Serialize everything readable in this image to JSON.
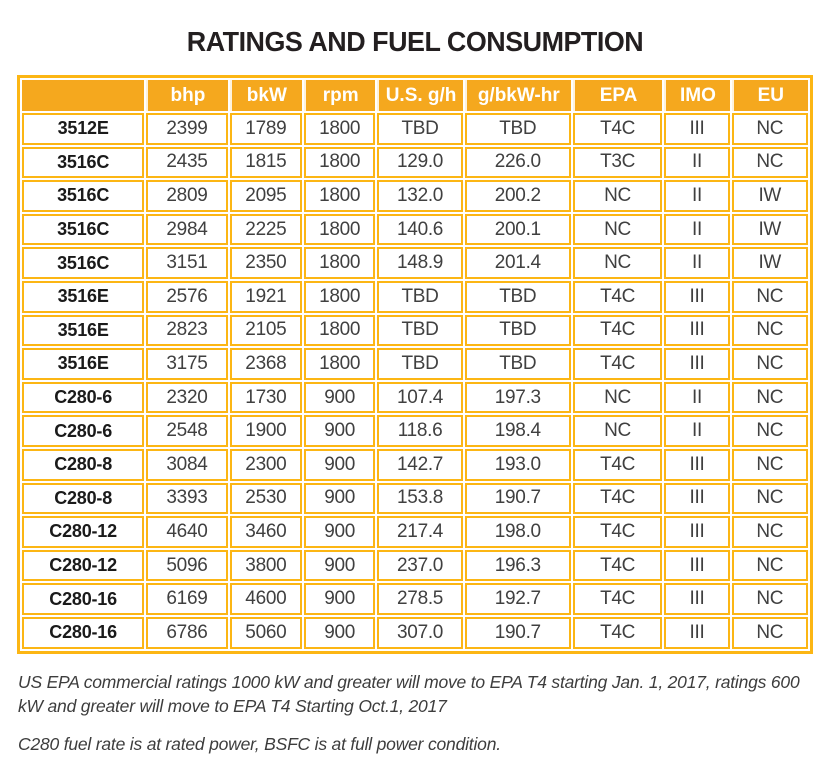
{
  "title": "RATINGS AND FUEL CONSUMPTION",
  "colors": {
    "header_bg": "#F5A81E",
    "header_text": "#FFFFFF",
    "grid": "#FCB614",
    "body_text": "#404040",
    "model_text": "#1A1A1A",
    "title_color": "#231F20",
    "footnote_color": "#3D3D3D"
  },
  "table": {
    "columns": [
      "",
      "bhp",
      "bkW",
      "rpm",
      "U.S. g/h",
      "g/bkW-hr",
      "EPA",
      "IMO",
      "EU"
    ],
    "rows": [
      [
        "3512E",
        "2399",
        "1789",
        "1800",
        "TBD",
        "TBD",
        "T4C",
        "III",
        "NC"
      ],
      [
        "3516C",
        "2435",
        "1815",
        "1800",
        "129.0",
        "226.0",
        "T3C",
        "II",
        "NC"
      ],
      [
        "3516C",
        "2809",
        "2095",
        "1800",
        "132.0",
        "200.2",
        "NC",
        "II",
        "IW"
      ],
      [
        "3516C",
        "2984",
        "2225",
        "1800",
        "140.6",
        "200.1",
        "NC",
        "II",
        "IW"
      ],
      [
        "3516C",
        "3151",
        "2350",
        "1800",
        "148.9",
        "201.4",
        "NC",
        "II",
        "IW"
      ],
      [
        "3516E",
        "2576",
        "1921",
        "1800",
        "TBD",
        "TBD",
        "T4C",
        "III",
        "NC"
      ],
      [
        "3516E",
        "2823",
        "2105",
        "1800",
        "TBD",
        "TBD",
        "T4C",
        "III",
        "NC"
      ],
      [
        "3516E",
        "3175",
        "2368",
        "1800",
        "TBD",
        "TBD",
        "T4C",
        "III",
        "NC"
      ],
      [
        "C280-6",
        "2320",
        "1730",
        "900",
        "107.4",
        "197.3",
        "NC",
        "II",
        "NC"
      ],
      [
        "C280-6",
        "2548",
        "1900",
        "900",
        "118.6",
        "198.4",
        "NC",
        "II",
        "NC"
      ],
      [
        "C280-8",
        "3084",
        "2300",
        "900",
        "142.7",
        "193.0",
        "T4C",
        "III",
        "NC"
      ],
      [
        "C280-8",
        "3393",
        "2530",
        "900",
        "153.8",
        "190.7",
        "T4C",
        "III",
        "NC"
      ],
      [
        "C280-12",
        "4640",
        "3460",
        "900",
        "217.4",
        "198.0",
        "T4C",
        "III",
        "NC"
      ],
      [
        "C280-12",
        "5096",
        "3800",
        "900",
        "237.0",
        "196.3",
        "T4C",
        "III",
        "NC"
      ],
      [
        "C280-16",
        "6169",
        "4600",
        "900",
        "278.5",
        "192.7",
        "T4C",
        "III",
        "NC"
      ],
      [
        "C280-16",
        "6786",
        "5060",
        "900",
        "307.0",
        "190.7",
        "T4C",
        "III",
        "NC"
      ]
    ]
  },
  "footnotes": [
    "US EPA commercial ratings 1000 kW and greater will move to EPA T4 starting Jan. 1, 2017, ratings 600 kW and greater will move to EPA T4 Starting Oct.1, 2017",
    "C280 fuel rate is at rated power, BSFC is at full power condition."
  ]
}
